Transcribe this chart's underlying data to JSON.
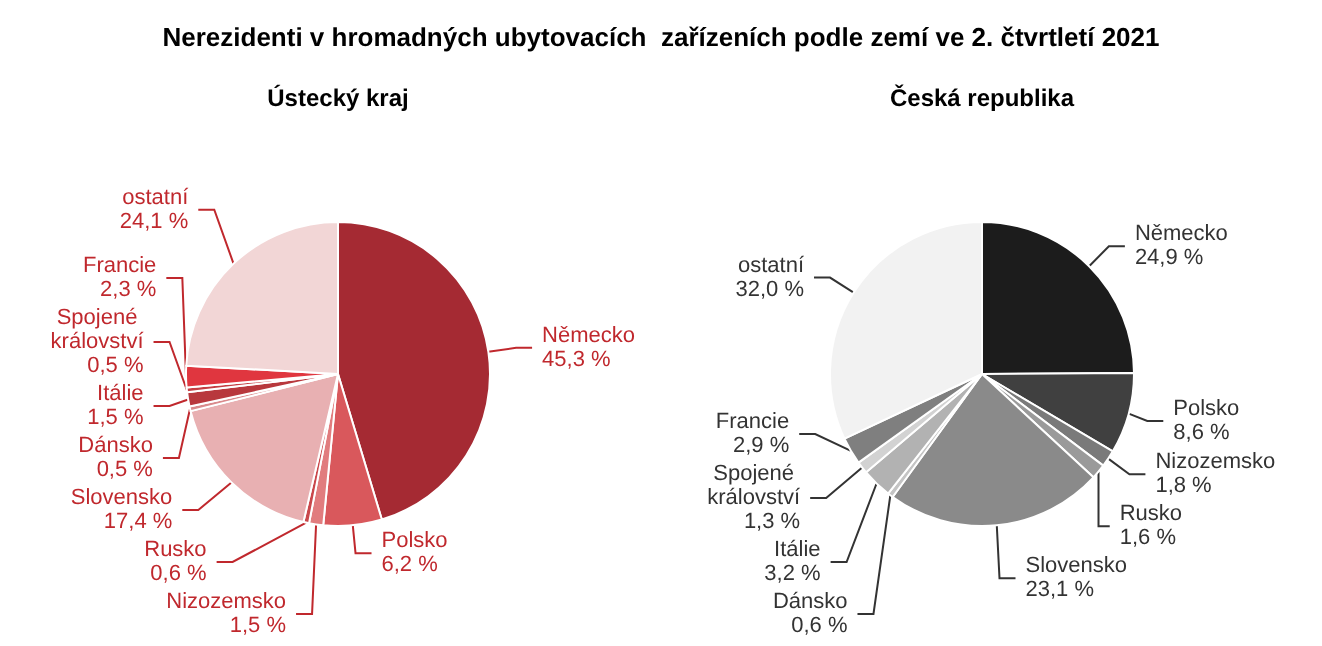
{
  "chart_data": [
    {
      "type": "pie",
      "title": "Nerezidenti v hromadných ubytovacích  zařízeních podle zemí ve 2. čtvrtletí 2021",
      "subtitle": "Ústecký kraj",
      "categories": [
        "Německo",
        "Polsko",
        "Nizozemsko",
        "Rusko",
        "Slovensko",
        "Dánsko",
        "Itálie",
        "Spojené království",
        "Francie",
        "ostatní"
      ],
      "values": [
        45.3,
        6.2,
        1.5,
        0.6,
        17.4,
        0.5,
        1.5,
        0.5,
        2.3,
        24.1
      ],
      "value_labels": [
        "45,3 %",
        "6,2 %",
        "1,5 %",
        "0,6 %",
        "17,4 %",
        "0,5 %",
        "1,5 %",
        "0,5 %",
        "2,3 %",
        "24,1 %"
      ],
      "colors": [
        "#a52a33",
        "#d9585c",
        "#e17c7e",
        "#c9474b",
        "#e8b0b2",
        "#d98a8c",
        "#b8383d",
        "#c43e43",
        "#e0363f",
        "#f2d6d6"
      ],
      "legend": false
    },
    {
      "type": "pie",
      "title": "Česká republika",
      "categories": [
        "Německo",
        "Polsko",
        "Nizozemsko",
        "Rusko",
        "Slovensko",
        "Dánsko",
        "Itálie",
        "Spojené království",
        "Francie",
        "ostatní"
      ],
      "values": [
        24.9,
        8.6,
        1.8,
        1.6,
        23.1,
        0.6,
        3.2,
        1.3,
        2.9,
        32.0
      ],
      "value_labels": [
        "24,9 %",
        "8,6 %",
        "1,8 %",
        "1,6 %",
        "23,1 %",
        "0,6 %",
        "3,2 %",
        "1,3 %",
        "2,9 %",
        "32,0 %"
      ],
      "colors": [
        "#1c1c1c",
        "#404040",
        "#7a7a7a",
        "#9a9a9a",
        "#8a8a8a",
        "#c4c4c4",
        "#b2b2b2",
        "#d2d2d2",
        "#7f7f7f",
        "#f2f2f2"
      ],
      "legend": false
    }
  ]
}
